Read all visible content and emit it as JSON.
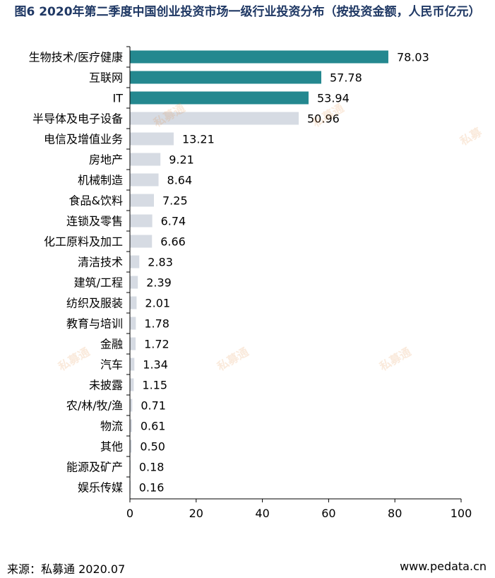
{
  "title": "图6 2020年第二季度中国创业投资市场一级行业投资分布（按投资金额，人民币亿元）",
  "source": "来源：私募通 2020.07",
  "website": "www.pedata.cn",
  "watermark": "私募通",
  "colors": {
    "highlight": "#24888f",
    "normal": "#d6dbe3",
    "axis": "#000000"
  },
  "chart_data": {
    "type": "bar",
    "orientation": "horizontal",
    "categories": [
      "生物技术/医疗健康",
      "互联网",
      "IT",
      "半导体及电子设备",
      "电信及增值业务",
      "房地产",
      "机械制造",
      "食品&饮料",
      "连锁及零售",
      "化工原料及加工",
      "清洁技术",
      "建筑/工程",
      "纺织及服装",
      "教育与培训",
      "金融",
      "汽车",
      "未披露",
      "农/林/牧/渔",
      "物流",
      "其他",
      "能源及矿产",
      "娱乐传媒"
    ],
    "values": [
      78.03,
      57.78,
      53.94,
      50.96,
      13.21,
      9.21,
      8.64,
      7.25,
      6.74,
      6.66,
      2.83,
      2.39,
      2.01,
      1.78,
      1.72,
      1.34,
      1.15,
      0.71,
      0.61,
      0.5,
      0.18,
      0.16
    ],
    "labels": [
      "78.03",
      "57.78",
      "53.94",
      "50.96",
      "13.21",
      "9.21",
      "8.64",
      "7.25",
      "6.74",
      "6.66",
      "2.83",
      "2.39",
      "2.01",
      "1.78",
      "1.72",
      "1.34",
      "1.15",
      "0.71",
      "0.61",
      "0.50",
      "0.18",
      "0.16"
    ],
    "highlighted": [
      true,
      true,
      true,
      false,
      false,
      false,
      false,
      false,
      false,
      false,
      false,
      false,
      false,
      false,
      false,
      false,
      false,
      false,
      false,
      false,
      false,
      false
    ],
    "xlim": [
      0,
      100
    ],
    "xticks": [
      "0",
      "20",
      "40",
      "60",
      "80",
      "100"
    ],
    "grid": false,
    "legend": "none"
  }
}
